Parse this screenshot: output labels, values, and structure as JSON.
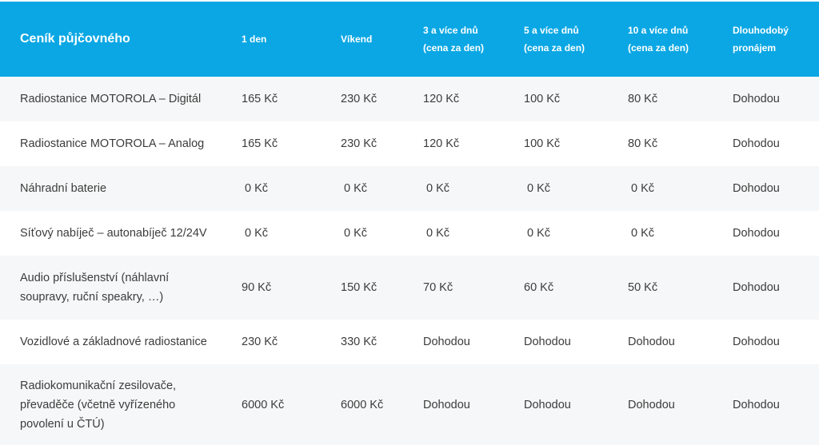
{
  "header": {
    "title": "Ceník půjčovného",
    "col1": "1 den",
    "col2": "Víkend",
    "col3": "3 a více dnů\n(cena za den)",
    "col4": "5 a více dnů\n(cena za den)",
    "col5": "10 a více dnů\n(cena za den)",
    "col6": "Dlouhodobý\npronájem"
  },
  "rows": [
    {
      "name": "Radiostanice MOTOROLA – Digitál",
      "d1": "165 Kč",
      "weekend": "230 Kč",
      "d3": "120 Kč",
      "d5": "100 Kč",
      "d10": "80 Kč",
      "long": "Dohodou"
    },
    {
      "name": "Radiostanice MOTOROLA – Analog",
      "d1": "165 Kč",
      "weekend": "230 Kč",
      "d3": "120 Kč",
      "d5": "100 Kč",
      "d10": "80 Kč",
      "long": "Dohodou"
    },
    {
      "name": "Náhradní baterie",
      "d1": " 0 Kč",
      "weekend": " 0 Kč",
      "d3": " 0 Kč",
      "d5": " 0 Kč",
      "d10": " 0 Kč",
      "long": "Dohodou"
    },
    {
      "name": "Síťový nabíječ – autonabíječ 12/24V",
      "d1": " 0 Kč",
      "weekend": " 0 Kč",
      "d3": " 0 Kč",
      "d5": " 0 Kč",
      "d10": " 0 Kč",
      "long": "Dohodou"
    },
    {
      "name": "Audio příslušenství (náhlavní\nsoupravy, ruční speakry, …)",
      "d1": "90 Kč",
      "weekend": "150 Kč",
      "d3": "70 Kč",
      "d5": "60 Kč",
      "d10": "50 Kč",
      "long": "Dohodou"
    },
    {
      "name": "Vozidlové a základnové radiostanice",
      "d1": "230 Kč",
      "weekend": "330 Kč",
      "d3": "Dohodou",
      "d5": "Dohodou",
      "d10": "Dohodou",
      "long": "Dohodou"
    },
    {
      "name": "Radiokomunikační zesilovače,\npřevaděče (včetně vyřízeného\npovolení u ČTÚ)",
      "d1": "6000 Kč",
      "weekend": "6000 Kč",
      "d3": "Dohodou",
      "d5": "Dohodou",
      "d10": "Dohodou",
      "long": "Dohodou"
    }
  ]
}
